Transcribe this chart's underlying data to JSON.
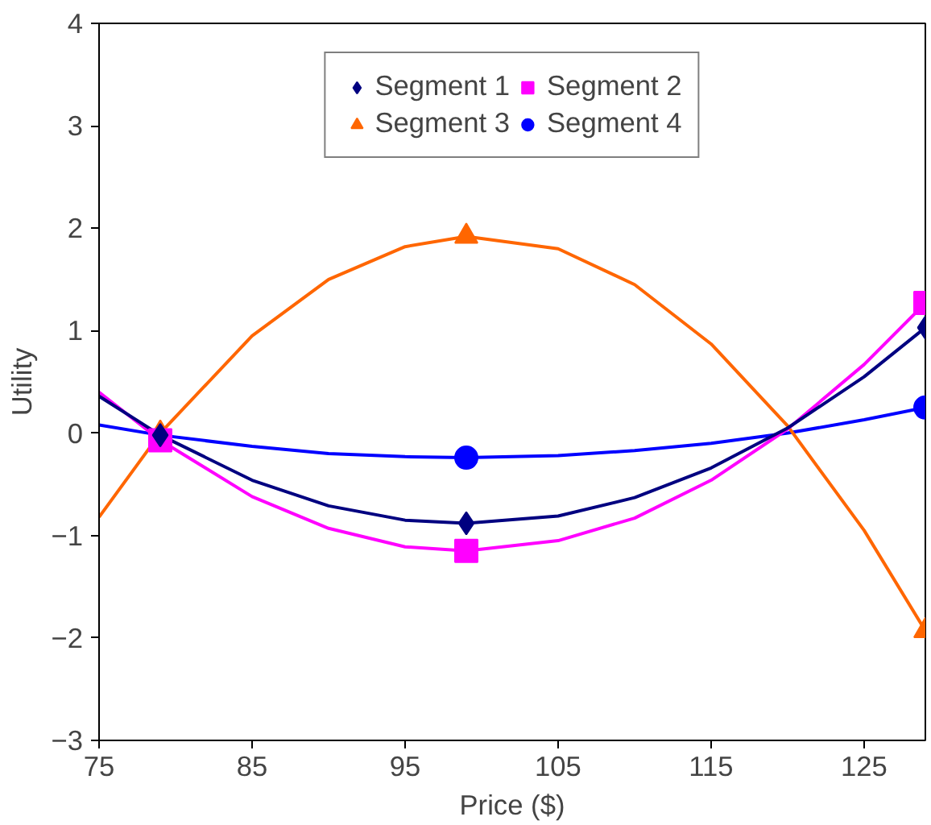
{
  "chart_data": {
    "type": "scatter",
    "xlabel": "Price ($)",
    "ylabel": "Utility",
    "xlim": [
      75,
      129
    ],
    "ylim": [
      -3,
      4
    ],
    "xticks": [
      75,
      85,
      95,
      105,
      115,
      125
    ],
    "yticks": [
      -3,
      -2,
      -1,
      0,
      1,
      2,
      3,
      4
    ],
    "grid": false,
    "legend": "top",
    "series": [
      {
        "name": "Segment 1",
        "color": "#000080",
        "marker": "diamond",
        "x": [
          79,
          99,
          129
        ],
        "values": [
          -0.02,
          -0.88,
          1.03
        ]
      },
      {
        "name": "Segment 2",
        "color": "#ff00ff",
        "marker": "square",
        "x": [
          79,
          99,
          129
        ],
        "values": [
          -0.07,
          -1.15,
          1.27
        ]
      },
      {
        "name": "Segment 3",
        "color": "#ff6600",
        "marker": "triangle",
        "x": [
          79,
          99,
          129
        ],
        "values": [
          0,
          1.92,
          -1.93
        ]
      },
      {
        "name": "Segment 4",
        "color": "#0000ff",
        "marker": "circle",
        "x": [
          99,
          129
        ],
        "values": [
          -0.24,
          0.25
        ]
      },
      {
        "type": "line",
        "color": "#000080",
        "x": [
          75,
          79,
          85,
          90,
          95,
          99,
          105,
          110,
          115,
          120,
          125,
          129
        ],
        "values": [
          0.36,
          -0.02,
          -0.46,
          -0.71,
          -0.85,
          -0.88,
          -0.81,
          -0.63,
          -0.34,
          0.05,
          0.55,
          1.03
        ]
      },
      {
        "type": "line",
        "color": "#ff00ff",
        "x": [
          75,
          79,
          85,
          90,
          95,
          99,
          105,
          110,
          115,
          120,
          125,
          129
        ],
        "values": [
          0.4,
          -0.07,
          -0.62,
          -0.93,
          -1.11,
          -1.15,
          -1.05,
          -0.83,
          -0.46,
          0.04,
          0.67,
          1.27
        ]
      },
      {
        "type": "line",
        "color": "#ff6600",
        "x": [
          75,
          79,
          85,
          90,
          95,
          99,
          105,
          110,
          115,
          120,
          125,
          129
        ],
        "values": [
          -0.82,
          0,
          0.95,
          1.5,
          1.82,
          1.92,
          1.8,
          1.45,
          0.87,
          0.07,
          -0.95,
          -1.93
        ]
      },
      {
        "type": "line",
        "color": "#0000ff",
        "x": [
          75,
          79,
          85,
          90,
          95,
          99,
          105,
          110,
          115,
          120,
          125,
          129
        ],
        "values": [
          0.08,
          -0.02,
          -0.13,
          -0.2,
          -0.23,
          -0.24,
          -0.22,
          -0.17,
          -0.1,
          0.0,
          0.13,
          0.25
        ]
      }
    ]
  }
}
